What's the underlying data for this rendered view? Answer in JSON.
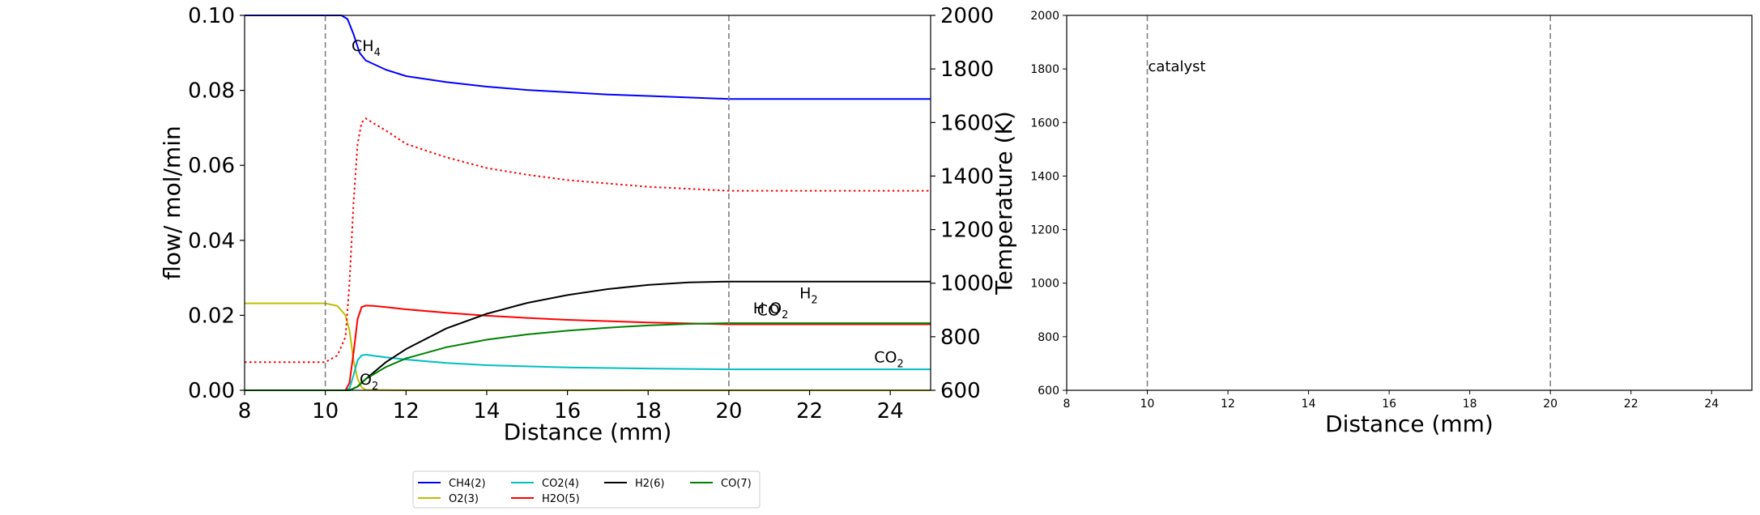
{
  "chart_data": [
    {
      "type": "line",
      "xlabel": "Distance (mm)",
      "ylabel": "flow/ mol/min",
      "y2label": "Temperature (K)",
      "xlim": [
        8,
        25
      ],
      "ylim": [
        0,
        0.1
      ],
      "y2lim": [
        600,
        2000
      ],
      "xticks": [
        "8",
        "10",
        "12",
        "14",
        "16",
        "18",
        "20",
        "22",
        "24"
      ],
      "yticks": [
        "0.00",
        "0.02",
        "0.04",
        "0.06",
        "0.08",
        "0.10"
      ],
      "y2ticks": [
        "600",
        "800",
        "1000",
        "1200",
        "1400",
        "1600",
        "1800",
        "2000"
      ],
      "vlines": [
        10,
        20
      ],
      "grid": false,
      "series": [
        {
          "name": "CH4(2)",
          "color": "#0000ff",
          "style": "solid",
          "x": [
            8,
            10,
            10.4,
            10.55,
            10.7,
            10.85,
            11,
            11.5,
            12,
            13,
            14,
            15,
            16,
            17,
            18,
            19,
            20,
            25
          ],
          "y": [
            0.1,
            0.1,
            0.1,
            0.099,
            0.095,
            0.09,
            0.088,
            0.0855,
            0.0838,
            0.0822,
            0.081,
            0.0801,
            0.0795,
            0.0789,
            0.0785,
            0.0781,
            0.0777,
            0.0777
          ]
        },
        {
          "name": "O2(3)",
          "color": "#bfbf00",
          "style": "solid",
          "x": [
            8,
            10,
            10.3,
            10.5,
            10.6,
            10.7,
            10.8,
            10.9,
            11,
            12,
            25
          ],
          "y": [
            0.0232,
            0.0232,
            0.0225,
            0.02,
            0.016,
            0.008,
            0.003,
            0.0008,
            0.0001,
            0,
            0
          ]
        },
        {
          "name": "CO2(4)",
          "color": "#00bfbf",
          "style": "solid",
          "x": [
            8,
            10.5,
            10.6,
            10.7,
            10.8,
            10.9,
            11,
            11.2,
            11.5,
            12,
            13,
            14,
            16,
            18,
            20,
            25
          ],
          "y": [
            0,
            0,
            0.0005,
            0.004,
            0.008,
            0.0093,
            0.0095,
            0.0092,
            0.0088,
            0.0082,
            0.0073,
            0.0067,
            0.0061,
            0.0058,
            0.0056,
            0.0056
          ]
        },
        {
          "name": "H2O(5)",
          "color": "#ff0000",
          "style": "solid",
          "x": [
            8,
            10.5,
            10.6,
            10.7,
            10.8,
            10.9,
            11,
            11.2,
            11.5,
            12,
            13,
            14,
            15,
            16,
            18,
            20,
            25
          ],
          "y": [
            0,
            0,
            0.002,
            0.01,
            0.019,
            0.0222,
            0.0226,
            0.0225,
            0.0222,
            0.0216,
            0.0207,
            0.0199,
            0.0193,
            0.0188,
            0.0181,
            0.0176,
            0.0176
          ]
        },
        {
          "name": "H2(6)",
          "color": "#000000",
          "style": "solid",
          "x": [
            8,
            10.6,
            10.8,
            11,
            11.5,
            12,
            13,
            14,
            15,
            16,
            17,
            18,
            19,
            20,
            25
          ],
          "y": [
            0,
            0,
            0.001,
            0.003,
            0.0075,
            0.011,
            0.0165,
            0.0204,
            0.0233,
            0.0254,
            0.027,
            0.0281,
            0.0288,
            0.029,
            0.029
          ]
        },
        {
          "name": "CO(7)",
          "color": "#008000",
          "style": "solid",
          "x": [
            8,
            10.6,
            10.8,
            11,
            11.5,
            12,
            13,
            14,
            15,
            16,
            17,
            18,
            19,
            20,
            25
          ],
          "y": [
            0,
            0,
            0.001,
            0.003,
            0.0062,
            0.0085,
            0.0115,
            0.0135,
            0.0149,
            0.0159,
            0.0167,
            0.0173,
            0.0177,
            0.0179,
            0.0179
          ]
        },
        {
          "name": "",
          "color": "#ff0000",
          "style": "dotted",
          "axis": "y2",
          "x": [
            8,
            10,
            10.3,
            10.5,
            10.6,
            10.7,
            10.8,
            10.9,
            11,
            11.5,
            12,
            13,
            14,
            15,
            16,
            18,
            20,
            25
          ],
          "y": [
            705,
            705,
            730,
            800,
            1000,
            1300,
            1520,
            1600,
            1615,
            1570,
            1520,
            1470,
            1430,
            1405,
            1385,
            1360,
            1345,
            1345
          ]
        }
      ],
      "annotations": [
        {
          "base": "CH",
          "sub": "4",
          "x": 10.65,
          "y": 0.0905,
          "color": "#0000ff"
        },
        {
          "base": "O",
          "sub": "2",
          "x": 10.85,
          "y": 0.0015,
          "color": "#bfbf00"
        },
        {
          "base": "H",
          "sub": "2",
          "x": 21.75,
          "y": 0.0245,
          "color": "#000000"
        },
        {
          "base": "H O",
          "sub": "2",
          "x": 20.6,
          "y": 0.0205,
          "color": "#ff0000"
        },
        {
          "base": "CO",
          "sub": "",
          "x": 20.7,
          "y": 0.02,
          "color": "#008000"
        },
        {
          "base": "CO",
          "sub": "2",
          "x": 23.6,
          "y": 0.0075,
          "color": "#00bfbf"
        }
      ],
      "legend": {
        "placement": "below-center",
        "entries": [
          {
            "label": "CH4(2)",
            "color": "#0000ff"
          },
          {
            "label": "CO2(4)",
            "color": "#00bfbf"
          },
          {
            "label": "H2(6)",
            "color": "#000000"
          },
          {
            "label": "CO(7)",
            "color": "#008000"
          },
          {
            "label": "O2(3)",
            "color": "#bfbf00"
          },
          {
            "label": "H2O(5)",
            "color": "#ff0000"
          }
        ]
      }
    },
    {
      "type": "line",
      "xlabel": "Distance (mm)",
      "ylabel": "",
      "xlim": [
        8,
        25
      ],
      "ylim": [
        600,
        2000
      ],
      "xticks": [
        "8",
        "10",
        "12",
        "14",
        "16",
        "18",
        "20",
        "22",
        "24"
      ],
      "yticks": [
        "600",
        "800",
        "1000",
        "1200",
        "1400",
        "1600",
        "1800",
        "2000"
      ],
      "vlines": [
        10,
        20
      ],
      "grid": false,
      "annotations": [
        {
          "text": "catalyst",
          "x": 10,
          "y": 1810
        }
      ],
      "series": []
    }
  ]
}
